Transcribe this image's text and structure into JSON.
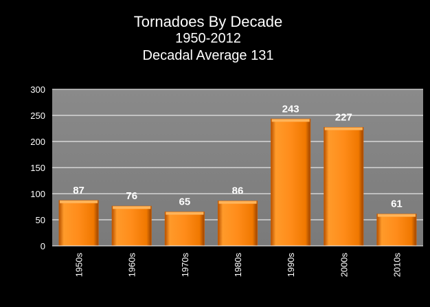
{
  "chart_data": {
    "type": "bar",
    "title": "Tornadoes By Decade",
    "subtitle": "1950-2012",
    "subtitle2": "Decadal Average 131",
    "xlabel": "",
    "ylabel": "",
    "categories": [
      "1950s",
      "1960s",
      "1970s",
      "1980s",
      "1990s",
      "2000s",
      "2010s"
    ],
    "values": [
      87,
      76,
      65,
      86,
      243,
      227,
      61
    ],
    "ylim": [
      0,
      300
    ],
    "yticks": [
      0,
      50,
      100,
      150,
      200,
      250,
      300
    ],
    "grid": true,
    "legend": "none",
    "colors": {
      "background": "#000000",
      "plot_area": "#808080",
      "bar": "#ff8c1a",
      "bar_dark": "#c65a00",
      "bar_light": "#ffb45a",
      "gridline": "#ffffff",
      "text": "#ffffff"
    }
  }
}
